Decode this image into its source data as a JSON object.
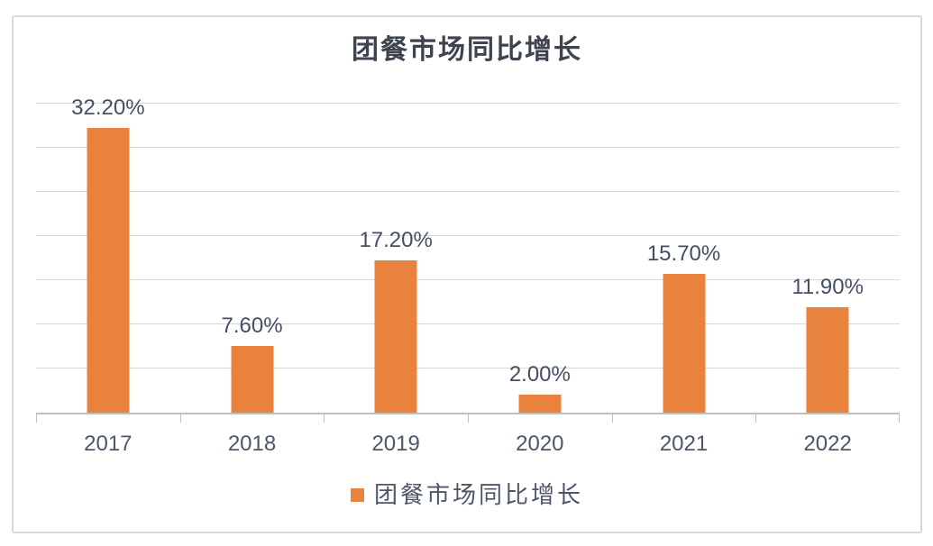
{
  "chart_data": {
    "type": "bar",
    "title": "团餐市场同比增长",
    "categories": [
      "2017",
      "2018",
      "2019",
      "2020",
      "2021",
      "2022"
    ],
    "values": [
      32.2,
      7.6,
      17.2,
      2.0,
      15.7,
      11.9
    ],
    "value_labels": [
      "32.20%",
      "7.60%",
      "17.20%",
      "2.00%",
      "15.70%",
      "11.90%"
    ],
    "xlabel": "",
    "ylabel": "",
    "ylim": [
      0,
      35
    ],
    "gridline_step": 5,
    "grid": true,
    "legend_position": "bottom",
    "legend": [
      {
        "label": "团餐市场同比增长",
        "color": "#E8823C"
      }
    ],
    "colors": {
      "bar": "#E8823C",
      "gridline": "#d9d9d9",
      "axis_line": "#bfbfbf",
      "tick": "#bfbfbf",
      "title_text": "#3d4450",
      "value_label_text": "#454f63",
      "axis_label_text": "#4d5768",
      "legend_text": "#4d5768",
      "frame_border": "#d9d9d9",
      "background": "#ffffff"
    }
  }
}
